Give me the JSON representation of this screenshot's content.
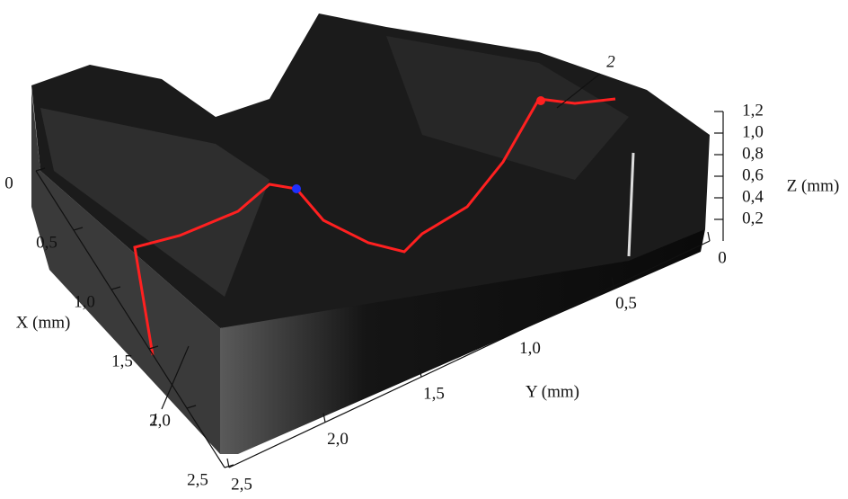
{
  "chart_data": {
    "type": "surface3d",
    "xlabel": "X (mm)",
    "ylabel": "Y (mm)",
    "zlabel": "Z (mm)",
    "xlim": [
      0,
      2.5
    ],
    "xticks": [
      0,
      {
        "value": 0.5,
        "label": "0,5"
      },
      {
        "value": 1.0,
        "label": "1,0"
      },
      {
        "value": 1.5,
        "label": "1,5"
      },
      {
        "value": 2.0,
        "label": "2,0"
      },
      {
        "value": 2.5,
        "label": "2,5"
      }
    ],
    "ylim": [
      0,
      2.5
    ],
    "yticks": [
      0,
      {
        "value": 0.5,
        "label": "0,5"
      },
      {
        "value": 1.0,
        "label": "1,0"
      },
      {
        "value": 1.5,
        "label": "1,5"
      },
      {
        "value": 2.0,
        "label": "2,0"
      },
      {
        "value": 2.5,
        "label": "2,5"
      }
    ],
    "zlim": [
      0,
      1.2
    ],
    "zticks": [
      {
        "value": 0.2,
        "label": "0,2"
      },
      {
        "value": 0.4,
        "label": "0,4"
      },
      {
        "value": 0.6,
        "label": "0,6"
      },
      {
        "value": 0.8,
        "label": "0,8"
      },
      {
        "value": 1.0,
        "label": "1,0"
      },
      {
        "value": 1.2,
        "label": "1,2"
      }
    ],
    "annotations": [
      "1",
      "2"
    ]
  }
}
